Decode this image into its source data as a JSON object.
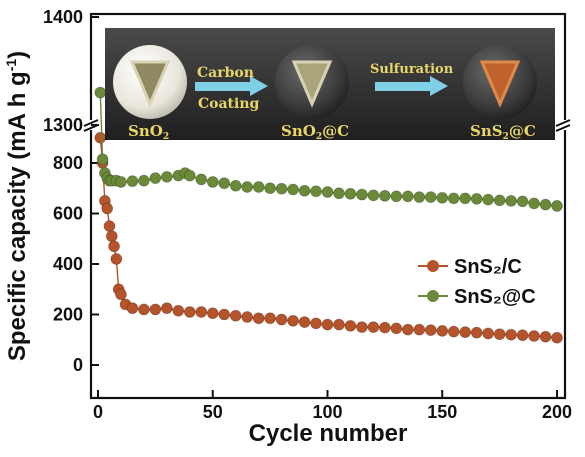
{
  "chart_data": {
    "type": "scatter",
    "xlabel": "Cycle number",
    "ylabel": "Specific capacity (mA h g",
    "ylabel_sup": "-1",
    "ylabel_close": ")",
    "xlim": [
      0,
      200
    ],
    "ylim_lower": [
      -60,
      900
    ],
    "ylim_upper": [
      1300,
      1400
    ],
    "xticks": [
      "0",
      "50",
      "100",
      "150",
      "200"
    ],
    "yticks_lower": [
      "0",
      "200",
      "400",
      "600",
      "800"
    ],
    "yticks_upper": [
      "1300",
      "1400"
    ],
    "axis_break": true,
    "legend_position": "right",
    "series": [
      {
        "name": "SnS₂/C",
        "color": "#b5532a",
        "x": [
          1,
          2,
          3,
          4,
          5,
          6,
          7,
          8,
          9,
          10,
          12,
          15,
          20,
          25,
          30,
          35,
          40,
          45,
          50,
          55,
          60,
          65,
          70,
          75,
          80,
          85,
          90,
          95,
          100,
          105,
          110,
          115,
          120,
          125,
          130,
          135,
          140,
          145,
          150,
          155,
          160,
          165,
          170,
          175,
          180,
          185,
          190,
          195,
          200
        ],
        "values": [
          900,
          800,
          650,
          620,
          550,
          510,
          470,
          420,
          300,
          280,
          240,
          225,
          220,
          220,
          225,
          215,
          210,
          210,
          205,
          200,
          195,
          190,
          185,
          185,
          180,
          175,
          170,
          165,
          160,
          160,
          155,
          150,
          150,
          148,
          145,
          140,
          140,
          138,
          135,
          132,
          130,
          128,
          125,
          122,
          120,
          118,
          115,
          112,
          108
        ]
      },
      {
        "name": "SnS₂@C",
        "color": "#6a8a3a",
        "x": [
          1,
          2,
          3,
          4,
          5,
          6,
          8,
          10,
          15,
          20,
          25,
          30,
          35,
          38,
          40,
          45,
          50,
          55,
          60,
          65,
          70,
          75,
          80,
          85,
          90,
          95,
          100,
          105,
          110,
          115,
          120,
          125,
          130,
          135,
          140,
          145,
          150,
          155,
          160,
          165,
          170,
          175,
          180,
          185,
          190,
          195,
          200
        ],
        "values": [
          1330,
          815,
          760,
          740,
          730,
          730,
          730,
          725,
          728,
          730,
          740,
          745,
          750,
          760,
          750,
          735,
          725,
          720,
          710,
          705,
          705,
          700,
          698,
          695,
          690,
          688,
          685,
          680,
          678,
          675,
          672,
          670,
          668,
          668,
          665,
          665,
          662,
          660,
          660,
          658,
          655,
          652,
          650,
          648,
          640,
          635,
          630
        ]
      }
    ]
  },
  "inset": {
    "sphere_labels": [
      "SnO",
      "2",
      "SnO",
      "2",
      "@C",
      "SnS",
      "2",
      "@C"
    ],
    "step1": [
      "Carbon",
      "Coating"
    ],
    "step2": "Sulfuration"
  },
  "colors": {
    "inset_bg": "#2f2f2f",
    "arrow": "#7fd0e6",
    "label_gold": "#e8d66a",
    "shell_gray": "#3a3a3a"
  }
}
